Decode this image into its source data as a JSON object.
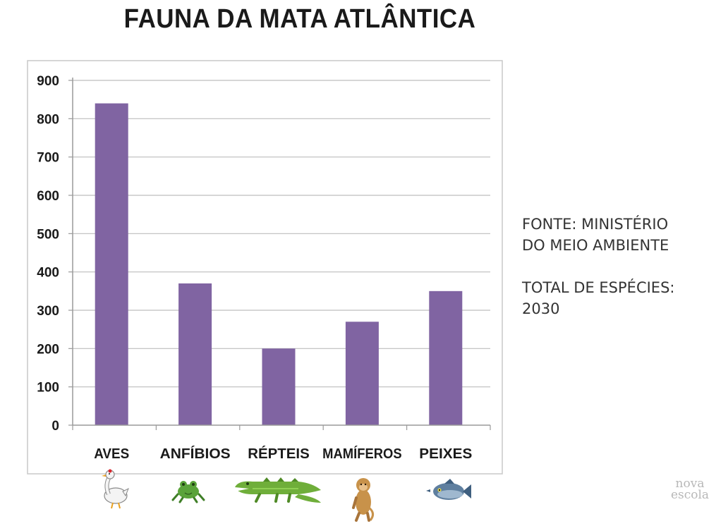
{
  "chart_data": {
    "type": "bar",
    "title": "FAUNA DA MATA ATLÂNTICA",
    "categories": [
      "AVES",
      "ANFÍBIOS",
      "RÉPTEIS",
      "MAMÍFEROS",
      "PEIXES"
    ],
    "values": [
      840,
      370,
      200,
      270,
      350
    ],
    "xlabel": "",
    "ylabel": "",
    "ylim": [
      0,
      900
    ],
    "yticks": [
      0,
      100,
      200,
      300,
      400,
      500,
      600,
      700,
      800,
      900
    ],
    "grid": true,
    "bar_color": "#8064a2",
    "category_icons": [
      "duck-icon",
      "frog-icon",
      "crocodile-icon",
      "monkey-icon",
      "fish-icon"
    ]
  },
  "notes": {
    "source_line1": "FONTE: MINISTÉRIO",
    "source_line2": "DO MEIO AMBIENTE",
    "total_line1": "TOTAL DE ESPÉCIES:",
    "total_line2": "2030"
  },
  "watermark": {
    "line1": "nova",
    "line2": "escola"
  }
}
